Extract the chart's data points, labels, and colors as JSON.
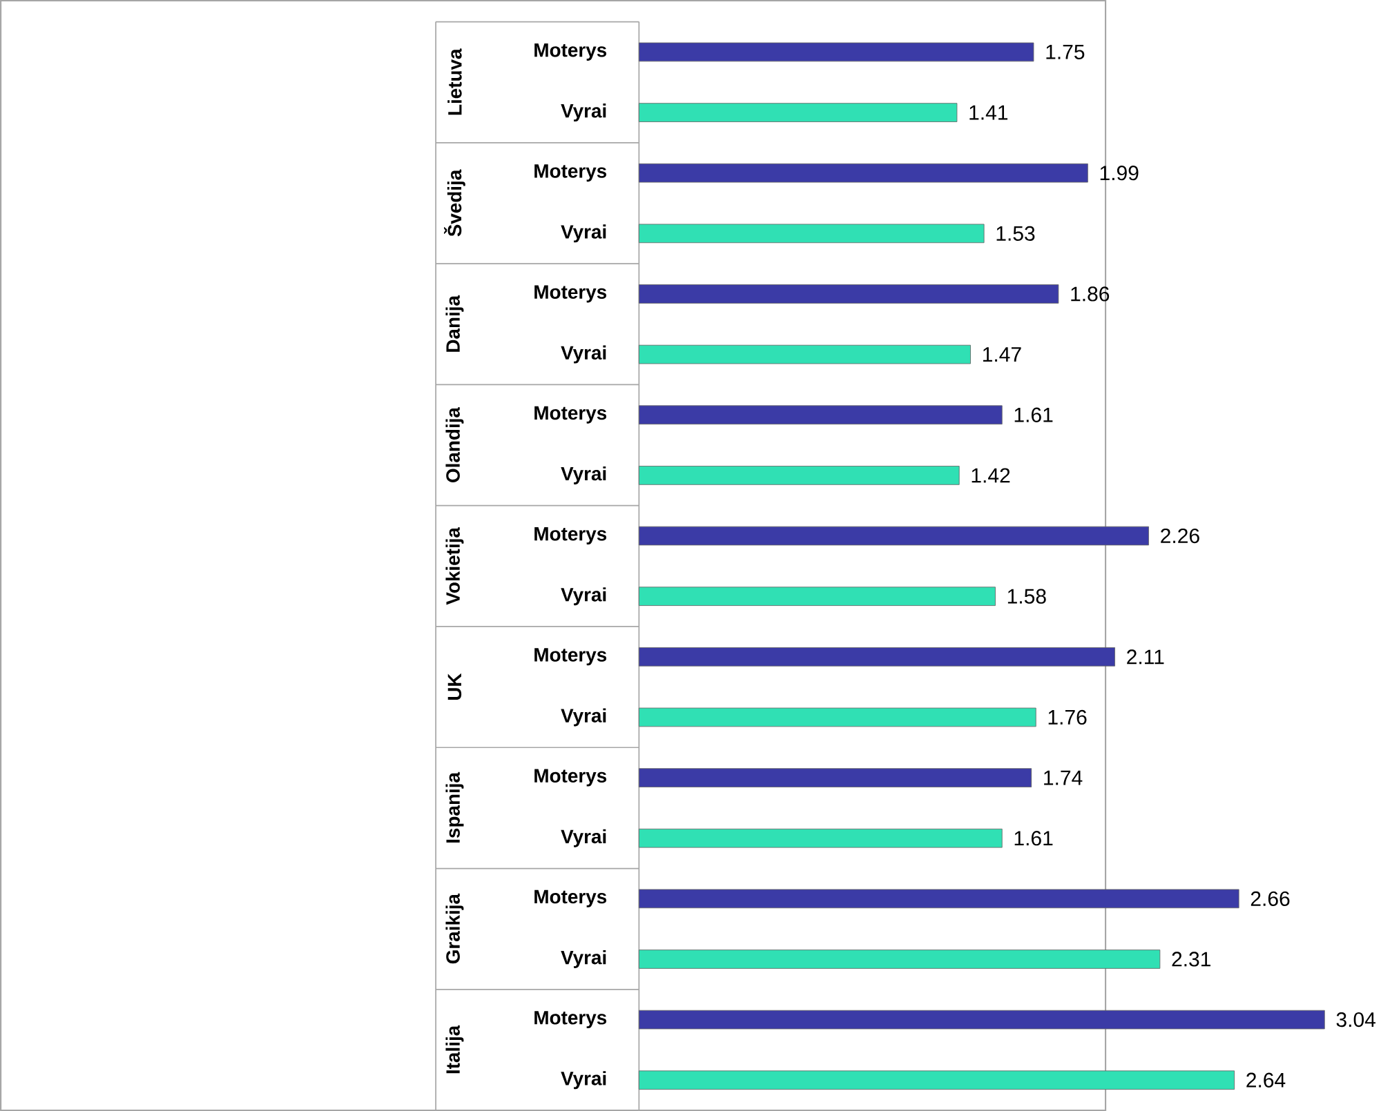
{
  "chart_data": {
    "type": "bar",
    "orientation": "horizontal",
    "categories": [
      "Moterys",
      "Vyrai",
      "Moterys",
      "Vyrai",
      "Moterys",
      "Vyrai",
      "Moterys",
      "Vyrai",
      "Moterys",
      "Vyrai",
      "Moterys",
      "Vyrai",
      "Moterys",
      "Vyrai",
      "Moterys",
      "Vyrai",
      "Moterys",
      "Vyrai"
    ],
    "values": [
      1.75,
      1.41,
      1.99,
      1.53,
      1.86,
      1.47,
      1.61,
      1.42,
      2.26,
      1.58,
      2.11,
      1.76,
      1.74,
      1.61,
      2.66,
      2.31,
      3.04,
      2.64
    ],
    "colors": [
      "#3b3ba6",
      "#30e0b4",
      "#3b3ba6",
      "#30e0b4",
      "#3b3ba6",
      "#30e0b4",
      "#3b3ba6",
      "#30e0b4",
      "#3b3ba6",
      "#30e0b4",
      "#3b3ba6",
      "#30e0b4",
      "#3b3ba6",
      "#30e0b4",
      "#3b3ba6",
      "#30e0b4",
      "#3b3ba6",
      "#30e0b4"
    ],
    "data_labels": true,
    "annotations": [
      "Lietuva",
      "Švedija",
      "Danija",
      "Olandija",
      "Vokietija",
      "UK",
      "Ispanija",
      "Graikija",
      "Italija"
    ]
  }
}
